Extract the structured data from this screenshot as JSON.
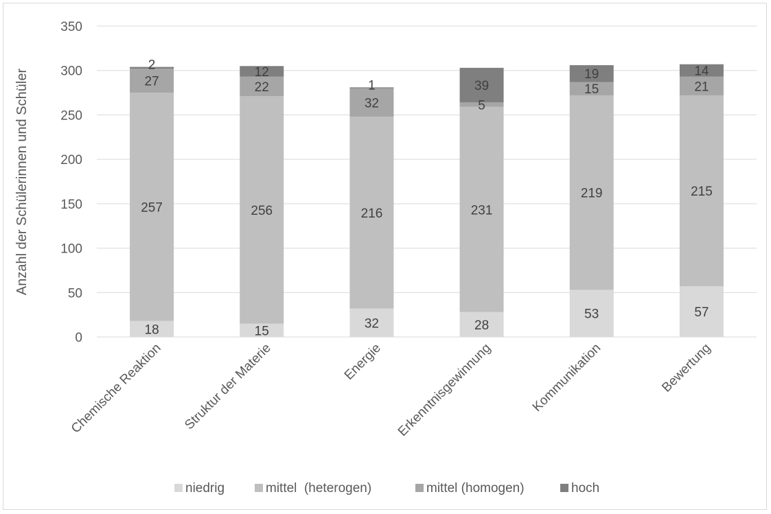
{
  "chart_data": {
    "type": "bar",
    "stacked": true,
    "title": "",
    "xlabel": "",
    "ylabel": "Anzahl der Schülerinnen und Schüler",
    "ylim": [
      0,
      350
    ],
    "yticks": [
      0,
      50,
      100,
      150,
      200,
      250,
      300,
      350
    ],
    "grid": true,
    "legend_position": "bottom",
    "categories": [
      "Chemische Reaktion",
      "Struktur der Materie",
      "Energie",
      "Erkenntnisgewinnung",
      "Kommunikation",
      "Bewertung"
    ],
    "series": [
      {
        "name": "niedrig",
        "color": "#d9d9d9",
        "values": [
          18,
          15,
          32,
          28,
          53,
          57
        ]
      },
      {
        "name": "mittel  (heterogen)",
        "color": "#bfbfbf",
        "values": [
          257,
          256,
          216,
          231,
          219,
          215
        ]
      },
      {
        "name": "mittel (homogen)",
        "color": "#a6a6a6",
        "values": [
          27,
          22,
          32,
          5,
          15,
          21
        ]
      },
      {
        "name": "hoch",
        "color": "#7f7f7f",
        "values": [
          2,
          12,
          1,
          39,
          19,
          14
        ]
      }
    ]
  }
}
